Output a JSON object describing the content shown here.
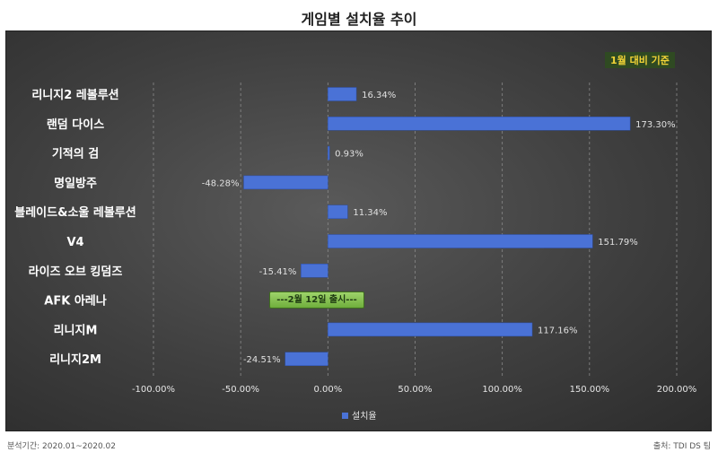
{
  "title": "게임별 설치율 추이",
  "note": "1월 대비 기준",
  "footer": {
    "left": "분석기간: 2020.01~2020.02",
    "right": "출처: TDI DS 팀"
  },
  "chart_data": {
    "type": "bar",
    "orientation": "horizontal",
    "categories": [
      "리니지2 레볼루션",
      "랜덤 다이스",
      "기적의 검",
      "명일방주",
      "블레이드&소울 레볼루션",
      "V4",
      "라이즈 오브 킹덤즈",
      "AFK 아레나",
      "리니지M",
      "리니지2M"
    ],
    "series": [
      {
        "name": "설치율",
        "values": [
          16.34,
          173.3,
          0.93,
          -48.28,
          11.34,
          151.79,
          -15.41,
          null,
          117.16,
          -24.51
        ],
        "color": "#4a72d6"
      }
    ],
    "data_labels": [
      "16.34%",
      "173.30%",
      "0.93%",
      "-48.28%",
      "11.34%",
      "151.79%",
      "-15.41%",
      "",
      "117.16%",
      "-24.51%"
    ],
    "annotations": [
      {
        "category": "AFK 아레나",
        "text": "---2월 12일 출시---"
      }
    ],
    "xlim": [
      -100,
      200
    ],
    "x_ticks": [
      "-100.00%",
      "-50.00%",
      "0.00%",
      "50.00%",
      "100.00%",
      "150.00%",
      "200.00%"
    ],
    "grid": "vertical dashed",
    "legend": "bottom"
  }
}
